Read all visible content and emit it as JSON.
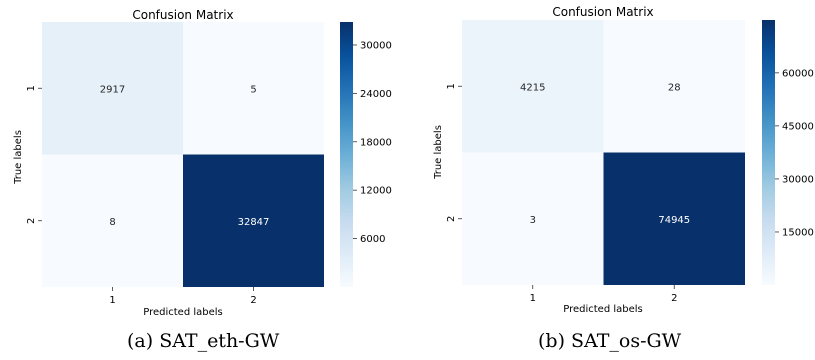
{
  "chart_data": [
    {
      "type": "heatmap",
      "title": "Confusion Matrix",
      "xlabel": "Predicted labels",
      "ylabel": "True labels",
      "x_categories": [
        "1",
        "2"
      ],
      "y_categories": [
        "1",
        "2"
      ],
      "matrix": [
        [
          2917,
          5
        ],
        [
          8,
          32847
        ]
      ],
      "cell_labels": [
        "2917",
        "5",
        "8",
        "32847"
      ],
      "colormap": "Blues",
      "color_range": [
        0,
        32847
      ],
      "colorbar_ticks": [
        6000,
        12000,
        18000,
        24000,
        30000
      ],
      "colorbar_tick_labels": [
        "6000",
        "12000",
        "18000",
        "24000",
        "30000"
      ],
      "caption": "(a)  SAT_eth-GW"
    },
    {
      "type": "heatmap",
      "title": "Confusion Matrix",
      "xlabel": "Predicted labels",
      "ylabel": "True labels",
      "x_categories": [
        "1",
        "2"
      ],
      "y_categories": [
        "1",
        "2"
      ],
      "matrix": [
        [
          4215,
          28
        ],
        [
          3,
          74945
        ]
      ],
      "cell_labels": [
        "4215",
        "28",
        "3",
        "74945"
      ],
      "colormap": "Blues",
      "color_range": [
        0,
        74945
      ],
      "colorbar_ticks": [
        15000,
        30000,
        45000,
        60000
      ],
      "colorbar_tick_labels": [
        "15000",
        "30000",
        "45000",
        "60000"
      ],
      "caption": "(b)  SAT_os-GW"
    }
  ],
  "colors": {
    "blues_low": "#f7fbff",
    "blues_mid": "#6baed6",
    "blues_high": "#08306b"
  }
}
